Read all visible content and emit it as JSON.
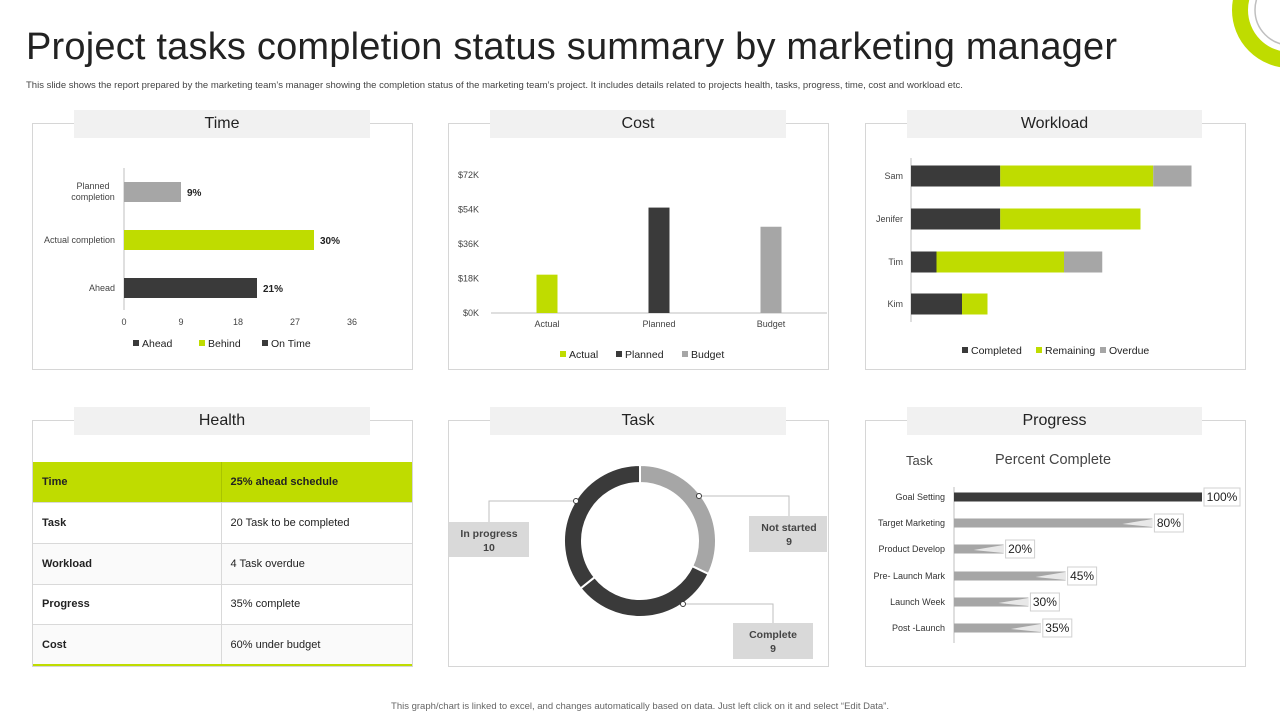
{
  "page": {
    "title": "Project tasks completion status summary by marketing manager",
    "subtitle": "This slide shows the report prepared by the marketing team’s manager showing the completion status of the marketing team’s project. It includes details related to projects health, tasks, progress, time, cost and workload etc.",
    "footer": "This graph/chart is linked to excel, and changes automatically based on data. Just left click on it and select “Edit Data”."
  },
  "colors": {
    "accent": "#bfdc00",
    "dark": "#3a3a3a",
    "gray": "#a6a6a6",
    "header_bg": "#f1f1f1"
  },
  "panels": {
    "time": "Time",
    "cost": "Cost",
    "workload": "Workload",
    "health": "Health",
    "task": "Task",
    "progress": "Progress"
  },
  "chart_data": [
    {
      "id": "time",
      "type": "bar",
      "orientation": "horizontal",
      "categories": [
        "Planned completion",
        "Actual completion",
        "Ahead"
      ],
      "values": [
        9,
        30,
        21
      ],
      "value_labels": [
        "9%",
        "30%",
        "21%"
      ],
      "bar_colors": [
        "#a6a6a6",
        "#bfdc00",
        "#3a3a3a"
      ],
      "xlim": [
        0,
        36
      ],
      "xticks": [
        "0",
        "9",
        "18",
        "27",
        "36"
      ],
      "legend": [
        "Ahead",
        "Behind",
        "On Time"
      ],
      "legend_colors": [
        "#3a3a3a",
        "#bfdc00",
        "#3a3a3a"
      ],
      "legend_placement": "bottom",
      "grid": false
    },
    {
      "id": "cost",
      "type": "bar",
      "categories": [
        "Actual",
        "Planned",
        "Budget"
      ],
      "values": [
        20,
        55,
        45
      ],
      "bar_colors": [
        "#bfdc00",
        "#3a3a3a",
        "#a6a6a6"
      ],
      "ylim": [
        0,
        72
      ],
      "yticks": [
        "$0K",
        "$18K",
        "$36K",
        "$54K",
        "$72K"
      ],
      "legend": [
        "Actual",
        "Planned",
        "Budget"
      ],
      "legend_placement": "bottom",
      "grid": false
    },
    {
      "id": "workload",
      "type": "bar",
      "orientation": "horizontal",
      "stacked": true,
      "categories": [
        "Sam",
        "Jenifer",
        "Tim",
        "Kim"
      ],
      "series": [
        {
          "name": "Completed",
          "color": "#3a3a3a",
          "values": [
            3.5,
            3.5,
            1,
            2
          ]
        },
        {
          "name": "Remaining",
          "color": "#bfdc00",
          "values": [
            6,
            5.5,
            5,
            1
          ]
        },
        {
          "name": "Overdue",
          "color": "#a6a6a6",
          "values": [
            1.5,
            0,
            1.5,
            0
          ]
        }
      ],
      "legend_placement": "bottom",
      "grid": false
    },
    {
      "id": "task",
      "type": "pie",
      "donut": true,
      "slices": [
        {
          "name": "Not started",
          "value": 9,
          "color": "#a6a6a6"
        },
        {
          "name": "Complete",
          "value": 9,
          "color": "#3a3a3a"
        },
        {
          "name": "In progress",
          "value": 10,
          "color": "#3a3a3a"
        }
      ],
      "labels": [
        {
          "name": "In progress",
          "value": "10"
        },
        {
          "name": "Not started",
          "value": "9"
        },
        {
          "name": "Complete",
          "value": "9"
        }
      ]
    },
    {
      "id": "progress",
      "type": "bar",
      "orientation": "horizontal",
      "title": "Percent Complete",
      "axis_label": "Task",
      "categories": [
        "Goal Setting",
        "Target Marketing",
        "Product Develop",
        "Pre- Launch Mark",
        "Launch Week",
        "Post -Launch"
      ],
      "values": [
        100,
        80,
        20,
        45,
        30,
        35
      ],
      "value_labels": [
        "100%",
        "80%",
        "20%",
        "45%",
        "30%",
        "35%"
      ],
      "xlim": [
        0,
        100
      ]
    }
  ],
  "health": {
    "rows": [
      {
        "label": "Time",
        "value": "25% ahead schedule"
      },
      {
        "label": "Task",
        "value": "20 Task to be completed"
      },
      {
        "label": "Workload",
        "value": "4 Task overdue"
      },
      {
        "label": "Progress",
        "value": "35% complete"
      },
      {
        "label": "Cost",
        "value": "60% under budget"
      }
    ]
  }
}
